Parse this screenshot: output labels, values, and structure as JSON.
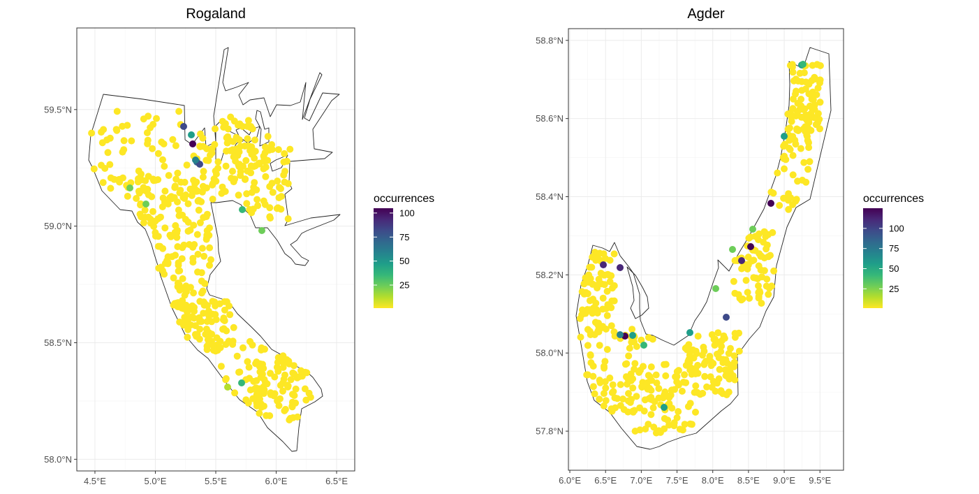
{
  "panels": [
    {
      "id": "rogaland",
      "title": "Rogaland",
      "xlim": [
        4.35,
        6.65
      ],
      "ylim": [
        57.95,
        59.85
      ],
      "x_ticks": [
        4.5,
        5.0,
        5.5,
        6.0,
        6.5
      ],
      "x_tick_labels": [
        "4.5°E",
        "5.0°E",
        "5.5°E",
        "6.0°E",
        "6.5°E"
      ],
      "y_ticks": [
        58.0,
        58.5,
        59.0,
        59.5
      ],
      "y_tick_labels": [
        "58.0°N",
        "58.5°N",
        "59.0°N",
        "59.5°N"
      ],
      "legend": {
        "title": "occurrences",
        "labels": [
          "100",
          "75",
          "50",
          "25"
        ],
        "values": [
          100,
          75,
          50,
          25
        ],
        "min": 1,
        "max": 105
      }
    },
    {
      "id": "agder",
      "title": "Agder",
      "xlim": [
        5.98,
        9.83
      ],
      "ylim": [
        57.7,
        58.83
      ],
      "x_ticks": [
        6.0,
        6.5,
        7.0,
        7.5,
        8.0,
        8.5,
        9.0,
        9.5
      ],
      "x_tick_labels": [
        "6.0°E",
        "6.5°E",
        "7.0°E",
        "7.5°E",
        "8.0°E",
        "8.5°E",
        "9.0°E",
        "9.5°E"
      ],
      "y_ticks": [
        57.8,
        58.0,
        58.2,
        58.4,
        58.6,
        58.8
      ],
      "y_tick_labels": [
        "57.8°N",
        "58.0°N",
        "58.2°N",
        "58.4°N",
        "58.6°N",
        "58.8°N"
      ],
      "legend": {
        "title": "occurrences",
        "labels": [
          "100",
          "75",
          "50",
          "25"
        ],
        "values": [
          100,
          75,
          50,
          25
        ],
        "min": 1,
        "max": 125
      }
    }
  ],
  "colors": {
    "viridis": [
      "#440154",
      "#482878",
      "#3E4A89",
      "#31688E",
      "#26828E",
      "#1F9E89",
      "#35B779",
      "#6DCD59",
      "#B4DE2C",
      "#FDE725"
    ],
    "panel_border": "#333333",
    "grid": "#ebebeb"
  }
}
